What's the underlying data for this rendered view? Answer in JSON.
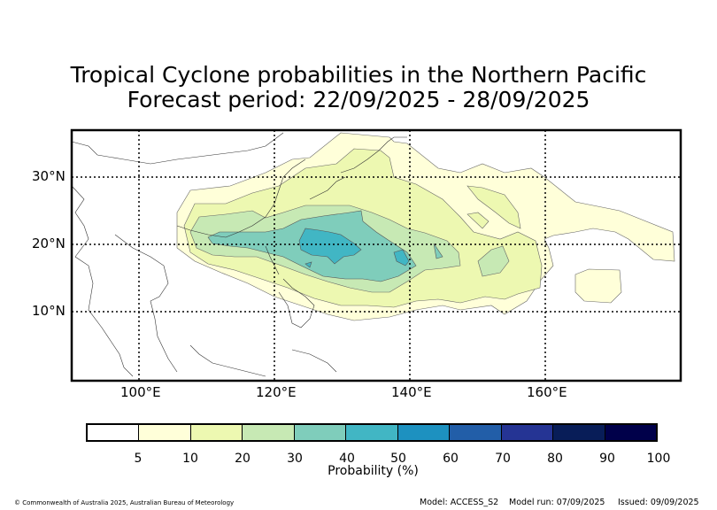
{
  "title_line1": "Tropical Cyclone probabilities in the Northern Pacific",
  "title_line2": "Forecast period: 22/09/2025 - 28/09/2025",
  "lat_labels": [
    "30°N",
    "20°N",
    "10°N"
  ],
  "lon_labels": [
    "100°E",
    "120°E",
    "140°E",
    "160°E"
  ],
  "colorbar": {
    "label": "Probability (%)",
    "ticks": [
      "5",
      "10",
      "20",
      "30",
      "40",
      "50",
      "60",
      "70",
      "80",
      "90",
      "100"
    ],
    "colors": [
      "#ffffff",
      "#ffffd9",
      "#edf8b1",
      "#c7e9b4",
      "#7fcdbb",
      "#41b6c4",
      "#1d91c0",
      "#225ea8",
      "#253494",
      "#081d58",
      "#00004a"
    ]
  },
  "footer": {
    "copyright": "© Commonwealth of Australia 2025, Australian Bureau of Meteorology",
    "model": "Model: ACCESS_S2",
    "model_run": "Model run: 07/09/2025",
    "issued": "Issued: 09/09/2025"
  }
}
